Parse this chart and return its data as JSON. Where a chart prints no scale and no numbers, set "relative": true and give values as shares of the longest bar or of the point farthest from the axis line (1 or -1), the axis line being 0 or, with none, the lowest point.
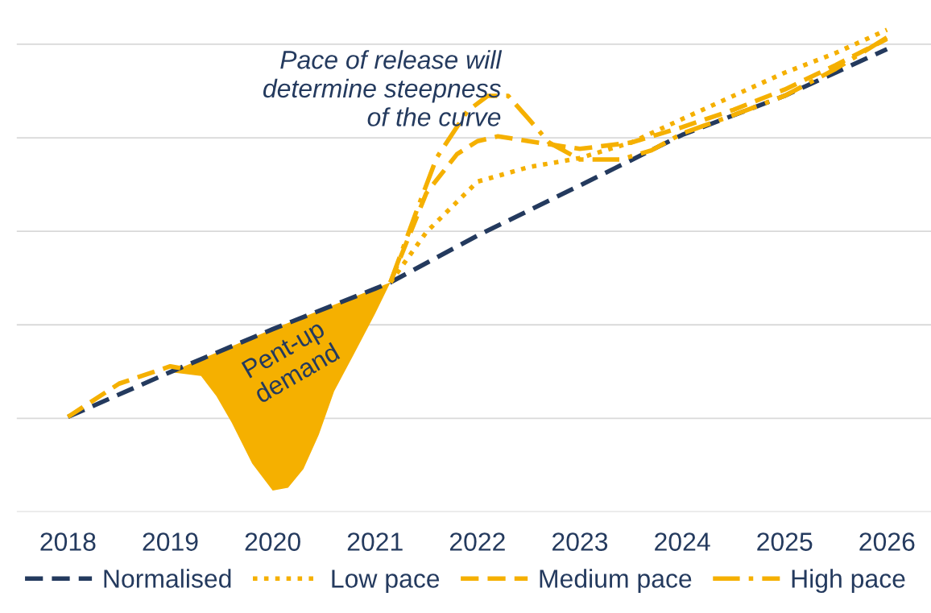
{
  "chart_data": {
    "type": "line",
    "relative": true,
    "grid": "y",
    "legend": "bottom",
    "marker": "none",
    "xlim": [
      2017.5,
      2026.43
    ],
    "xticks": [
      2018,
      2019,
      2020,
      2021,
      2022,
      2023,
      2024,
      2025,
      2026
    ],
    "series": [
      {
        "type": "area",
        "color": "#f5b000",
        "x": [
          2019,
          2019.3,
          2019.45,
          2019.6,
          2019.8,
          2020,
          2020.15,
          2020.3,
          2020.45,
          2020.6,
          2020.8,
          2021,
          2021.15,
          2021,
          2020,
          2019
        ],
        "values": [
          0.29,
          0.282,
          0.24,
          0.185,
          0.1,
          0.044,
          0.05,
          0.089,
          0.16,
          0.25,
          0.33,
          0.411,
          0.476,
          0.463,
          0.379,
          0.29
        ]
      },
      {
        "name": "Normalised",
        "color": "#243a5e",
        "line_style": "dashed",
        "x": [
          2018,
          2019,
          2020,
          2021,
          2021.15,
          2022,
          2023,
          2024,
          2025,
          2026
        ],
        "values": [
          0.197,
          0.29,
          0.379,
          0.463,
          0.476,
          0.573,
          0.677,
          0.782,
          0.863,
          0.96
        ]
      },
      {
        "name": "Low pace",
        "color": "#f5b000",
        "line_style": "dotted",
        "x": [
          2021.15,
          2021.5,
          2022,
          2022.5,
          2023,
          2023.5,
          2024,
          2024.5,
          2025,
          2025.5,
          2026
        ],
        "values": [
          0.476,
          0.58,
          0.685,
          0.715,
          0.734,
          0.766,
          0.815,
          0.863,
          0.911,
          0.952,
          1.0
        ]
      },
      {
        "name": "Medium pace",
        "color": "#f5b000",
        "line_style": "dashed",
        "x": [
          2018,
          2018.5,
          2019,
          2019.3,
          2020,
          2021.15,
          2021.5,
          2021.8,
          2022,
          2022.2,
          2022.5,
          2023,
          2023.5,
          2024,
          2024.5,
          2025,
          2025.5,
          2026
        ],
        "values": [
          0.197,
          0.266,
          0.302,
          0.29,
          null,
          0.476,
          0.661,
          0.742,
          0.769,
          0.779,
          0.769,
          0.753,
          0.766,
          0.798,
          0.834,
          0.876,
          0.927,
          0.981
        ]
      },
      {
        "name": "High pace",
        "color": "#f5b000",
        "line_style": "dashdot",
        "x": [
          2021.15,
          2021.4,
          2021.6,
          2021.9,
          2022.1,
          2022.3,
          2022.5,
          2022.7,
          2023,
          2023.4,
          2023.7,
          2024,
          2024.5,
          2025,
          2025.5,
          2026
        ],
        "values": [
          0.476,
          0.621,
          0.734,
          0.831,
          0.863,
          0.863,
          0.815,
          0.766,
          0.731,
          0.731,
          0.75,
          0.785,
          0.823,
          0.863,
          0.919,
          0.984
        ]
      }
    ],
    "annotations": [
      "Pace of release will\ndetermine steepness\nof the curve",
      "Pent-up\ndemand"
    ]
  }
}
